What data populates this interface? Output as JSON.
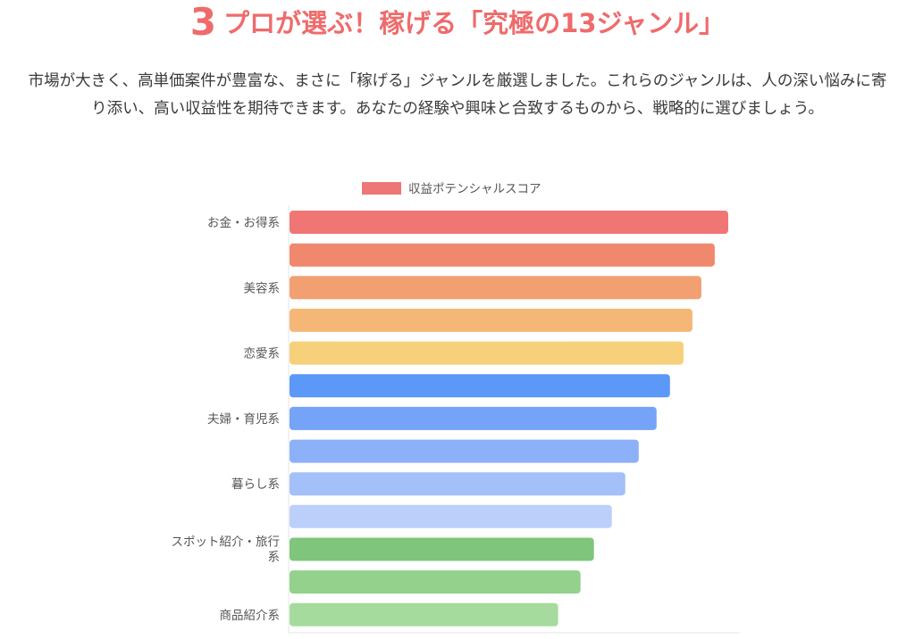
{
  "section": {
    "number": "3",
    "title": "プロが選ぶ！稼げる「究極の13ジャンル」",
    "intro": "市場が大きく、高単価案件が豊富な、まさに「稼げる」ジャンルを厳選しました。これらのジャンルは、人の深い悩みに寄り添い、高い収益性を期待できます。あなたの経験や興味と合致するものから、戦略的に選びましょう。"
  },
  "chart_data": {
    "type": "bar",
    "orientation": "horizontal",
    "legend": {
      "label": "収益ポテンシャルスコア",
      "position": "top",
      "color": "#ef7676"
    },
    "categories": [
      "お金・お得系",
      "",
      "美容系",
      "",
      "恋愛系",
      "",
      "夫婦・育児系",
      "",
      "暮らし系",
      "",
      "スポット紹介・旅行系",
      "",
      "商品紹介系"
    ],
    "values": [
      98,
      95,
      92,
      90,
      88,
      85,
      82,
      78,
      75,
      72,
      68,
      65,
      60
    ],
    "colors": [
      "#f07676",
      "#f0886e",
      "#f2a071",
      "#f4b776",
      "#f6d07a",
      "#5c98f7",
      "#75a3f7",
      "#8db1f8",
      "#a4c0f9",
      "#bccffb",
      "#7fc57c",
      "#93d18d",
      "#a5db9d"
    ],
    "xlim": [
      0,
      100
    ],
    "grid": false
  }
}
